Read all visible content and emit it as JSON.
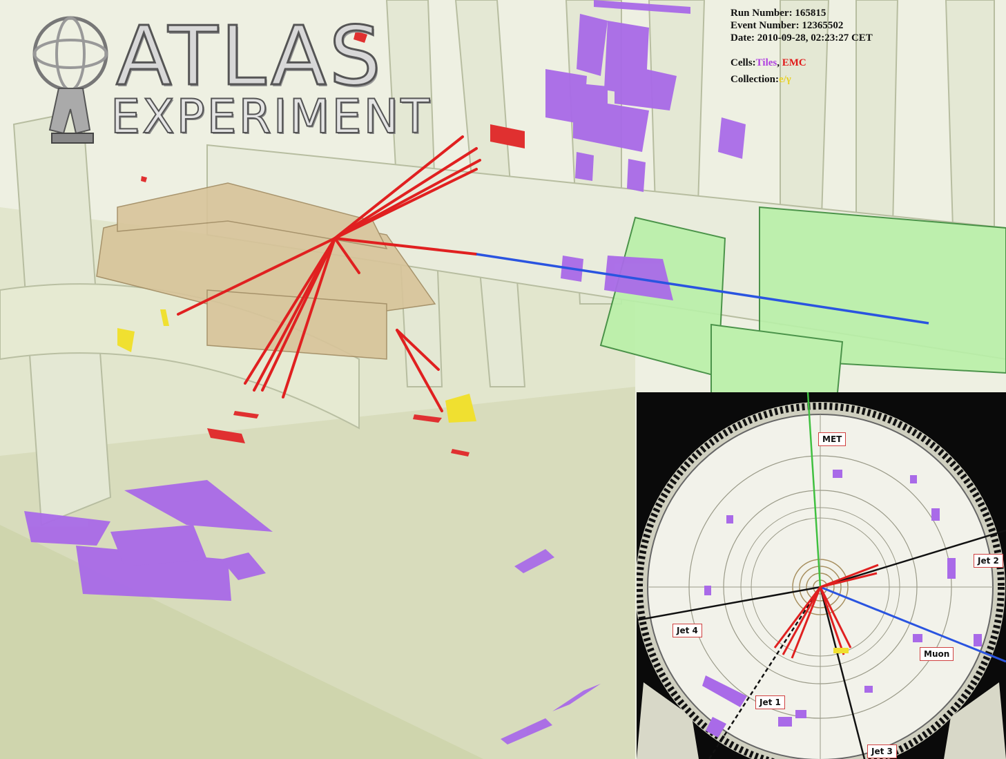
{
  "logo": {
    "title": "ATLAS",
    "subtitle": "EXPERIMENT"
  },
  "event_info": {
    "run_number": "Run Number: 165815",
    "event_number": "Event Number: 12365502",
    "date": "Date: 2010-09-28, 02:23:27 CET",
    "cells_label": "Cells:",
    "cells_tiles": "Tiles",
    "cells_sep": ", ",
    "cells_emc": "EMC",
    "collection_label": "Collection:",
    "collection_value": "e/γ"
  },
  "inset_labels": {
    "met": "MET",
    "jet1": "Jet 1",
    "jet2": "Jet 2",
    "jet3": "Jet 3",
    "jet4": "Jet 4",
    "muon": "Muon"
  },
  "colors": {
    "tiles": "#b040e0",
    "emc": "#e01818",
    "egamma": "#e8d020",
    "muon_track": "#2050e0",
    "met_line": "#40c040",
    "detector": "#dfe5cc"
  }
}
